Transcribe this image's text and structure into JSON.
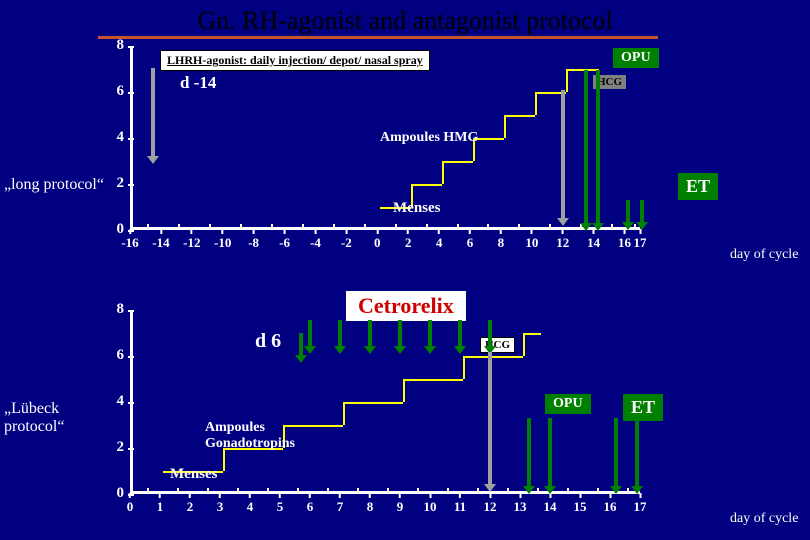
{
  "title": "Gn. RH-agonist and antagonist protocol",
  "side_labels": {
    "top": "„long protocol“",
    "bottom_line1": "„Lübeck",
    "bottom_line2": "protocol“"
  },
  "xlabel": "day of cycle",
  "chart1": {
    "y": [
      0,
      2,
      4,
      6,
      8
    ],
    "x": [
      -16,
      -14,
      -12,
      -10,
      -8,
      -6,
      -4,
      -2,
      0,
      2,
      4,
      6,
      8,
      10,
      12,
      14,
      16,
      17
    ],
    "pill_label": "LHRH-agonist: daily injection/  depot/  nasal spray",
    "d_label": "d -14",
    "hmg_label": "Ampoules HMG",
    "opu_label": "OPU",
    "hcg_label": "HCG",
    "et_label": "ET",
    "menses_label": "Menses",
    "step_days": [
      0,
      2,
      4,
      6,
      8,
      10,
      12,
      13
    ],
    "step_vals": [
      1,
      2,
      3,
      4,
      5,
      6,
      7,
      7
    ]
  },
  "chart2": {
    "y": [
      0,
      2,
      4,
      6,
      8
    ],
    "x": [
      0,
      1,
      2,
      3,
      4,
      5,
      6,
      7,
      8,
      9,
      10,
      11,
      12,
      13,
      14,
      15,
      16,
      17
    ],
    "cetro_label": "Cetrorelix",
    "d_label": "d 6",
    "amp_label_line1": "Ampoules",
    "amp_label_line2": "Gonadotropins",
    "opu_label": "OPU",
    "hcg_label": "HCG",
    "et_label": "ET",
    "menses_label": "Menses",
    "step_days": [
      1,
      3,
      5,
      7,
      9,
      11,
      13
    ],
    "step_vals": [
      1,
      2,
      3,
      4,
      5,
      6,
      7
    ]
  }
}
